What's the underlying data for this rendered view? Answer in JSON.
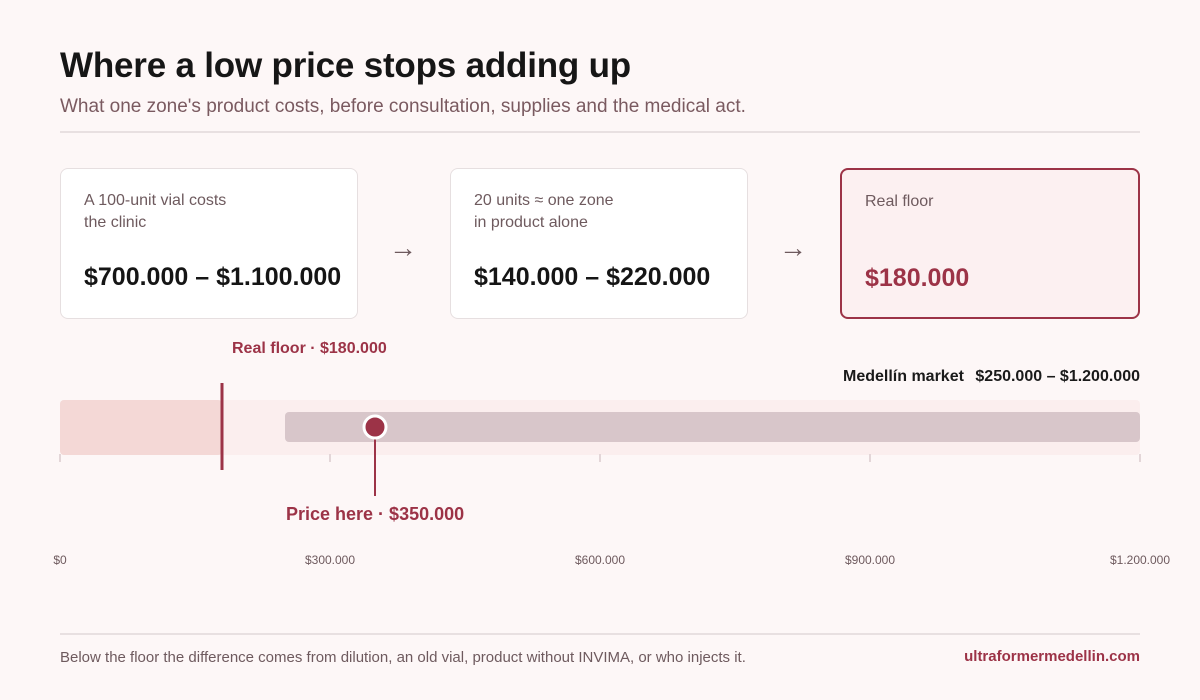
{
  "header": {
    "title": "Where a low price stops adding up",
    "subtitle": "What one zone's product costs, before consultation, supplies and the medical act."
  },
  "cards": [
    {
      "caption": "A 100-unit vial costs\nthe clinic",
      "value": "$700.000 – $1.100.000"
    },
    {
      "caption": "20 units ≈ one zone\nin product alone",
      "value": "$140.000 – $220.000"
    },
    {
      "caption": "Real floor",
      "value": "$180.000"
    }
  ],
  "arrows": [
    "→",
    "→"
  ],
  "chart_data": {
    "type": "range",
    "xlim": [
      0,
      1200000
    ],
    "ticks": [
      {
        "value": 0,
        "label": "$0"
      },
      {
        "value": 300000,
        "label": "$300.000"
      },
      {
        "value": 600000,
        "label": "$600.000"
      },
      {
        "value": 900000,
        "label": "$900.000"
      },
      {
        "value": 1200000,
        "label": "$1.200.000"
      }
    ],
    "floor": {
      "value": 180000,
      "label": "Real floor · $180.000"
    },
    "market": {
      "min": 250000,
      "max": 1200000,
      "label": "Medellín market",
      "range_label": "$250.000 – $1.200.000"
    },
    "price": {
      "value": 350000,
      "label": "Price here · $350.000"
    },
    "colors": {
      "floor_zone": "#f4d8d6",
      "track": "#fbeeee",
      "market_band": "#d8c6ca",
      "accent": "#9c3347",
      "tick": "#e3d6d8",
      "tick_text": "#6e5a5e",
      "market_text": "#1a1a1a"
    }
  },
  "footer": {
    "note": "Below the floor the difference comes from dilution, an old vial, product without INVIMA, or who injects it.",
    "link": "ultraformermedellin.com"
  }
}
